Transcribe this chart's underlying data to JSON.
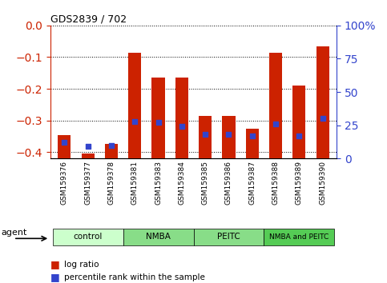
{
  "title": "GDS2839 / 702",
  "samples": [
    "GSM159376",
    "GSM159377",
    "GSM159378",
    "GSM159381",
    "GSM159383",
    "GSM159384",
    "GSM159385",
    "GSM159386",
    "GSM159387",
    "GSM159388",
    "GSM159389",
    "GSM159390"
  ],
  "log_ratios": [
    -0.345,
    -0.405,
    -0.375,
    -0.085,
    -0.165,
    -0.165,
    -0.285,
    -0.285,
    -0.325,
    -0.085,
    -0.19,
    -0.065
  ],
  "percentile_ranks_pct": [
    12,
    9,
    10,
    28,
    27,
    24,
    18,
    18,
    17,
    26,
    17,
    30
  ],
  "group_defs": [
    {
      "label": "control",
      "start": 0,
      "end": 2,
      "color": "#ccffcc"
    },
    {
      "label": "NMBA",
      "start": 3,
      "end": 5,
      "color": "#88dd88"
    },
    {
      "label": "PEITC",
      "start": 6,
      "end": 8,
      "color": "#88dd88"
    },
    {
      "label": "NMBA and PEITC",
      "start": 9,
      "end": 11,
      "color": "#55cc55"
    }
  ],
  "bar_color": "#cc2200",
  "dot_color": "#3344cc",
  "ylim_left": [
    -0.42,
    0.0
  ],
  "ylim_right": [
    0,
    100
  ],
  "yticks_left": [
    0.0,
    -0.1,
    -0.2,
    -0.3,
    -0.4
  ],
  "yticks_right": [
    0,
    25,
    50,
    75,
    100
  ],
  "background_color": "#ffffff",
  "plot_bg_color": "#ffffff",
  "left_axis_color": "#cc2200",
  "right_axis_color": "#3344cc",
  "bar_bottom": -0.42
}
